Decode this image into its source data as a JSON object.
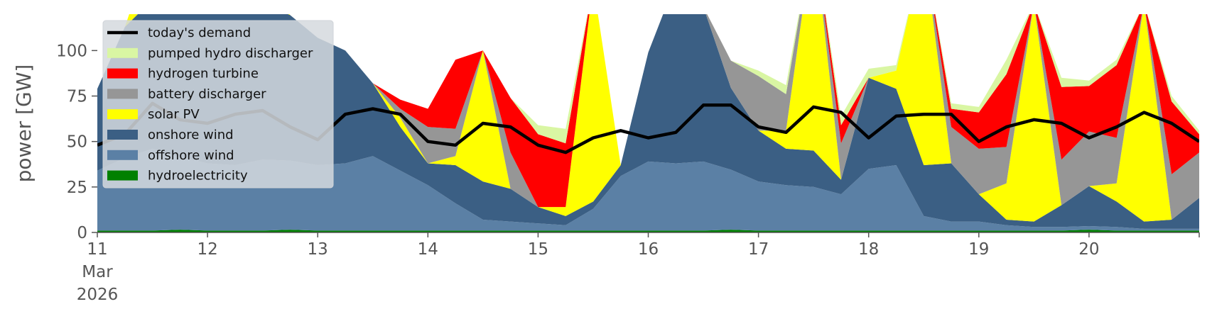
{
  "chart_data": {
    "type": "area",
    "ylabel": "power [GW]",
    "ylim": [
      0,
      120
    ],
    "yticks": [
      0,
      25,
      50,
      75,
      100
    ],
    "xlim_days": [
      11,
      21
    ],
    "xtick_labels": [
      {
        "day": 11,
        "lines": [
          "11",
          "Mar",
          "2026"
        ]
      },
      {
        "day": 12,
        "lines": [
          "12"
        ]
      },
      {
        "day": 13,
        "lines": [
          "13"
        ]
      },
      {
        "day": 14,
        "lines": [
          "14"
        ]
      },
      {
        "day": 15,
        "lines": [
          "15"
        ]
      },
      {
        "day": 16,
        "lines": [
          "16"
        ]
      },
      {
        "day": 17,
        "lines": [
          "17"
        ]
      },
      {
        "day": 18,
        "lines": [
          "18"
        ]
      },
      {
        "day": 19,
        "lines": [
          "19"
        ]
      },
      {
        "day": 20,
        "lines": [
          "20"
        ]
      }
    ],
    "legend_position": "top-left",
    "x": [
      11.0,
      11.25,
      11.5,
      11.75,
      12.0,
      12.25,
      12.5,
      12.75,
      13.0,
      13.25,
      13.5,
      13.75,
      14.0,
      14.25,
      14.5,
      14.75,
      15.0,
      15.25,
      15.5,
      15.75,
      16.0,
      16.25,
      16.5,
      16.75,
      17.0,
      17.25,
      17.5,
      17.75,
      18.0,
      18.25,
      18.5,
      18.75,
      19.0,
      19.25,
      19.5,
      19.75,
      20.0,
      20.25,
      20.5,
      20.75,
      21.0
    ],
    "series": [
      {
        "name": "hydroelectricity",
        "color": "#008000",
        "values": [
          1,
          1,
          1,
          1.5,
          1,
          1,
          1,
          1.5,
          1,
          1,
          1,
          1,
          1,
          1,
          1,
          1,
          1,
          1,
          1,
          1,
          1,
          1,
          1,
          1.5,
          1,
          1,
          1,
          1,
          1,
          1,
          1,
          1,
          1,
          1,
          1,
          1,
          1.5,
          1,
          1,
          1,
          1
        ]
      },
      {
        "name": "offshore wind",
        "color": "#5b80a5",
        "values": [
          33,
          40,
          45,
          40,
          37,
          36,
          39,
          38,
          36,
          37,
          41,
          33,
          25,
          15,
          6,
          5,
          4,
          3,
          12,
          30,
          38,
          37,
          38,
          33,
          27,
          25,
          24,
          20,
          34,
          36,
          8,
          5,
          5,
          3,
          2,
          2,
          2,
          2,
          1,
          1,
          1
        ]
      },
      {
        "name": "onshore wind",
        "color": "#3b5f84",
        "values": [
          45,
          72,
          82,
          88,
          90,
          86,
          86,
          80,
          70,
          62,
          40,
          24,
          12,
          21,
          21,
          18,
          9,
          5,
          4,
          6,
          60,
          100,
          85,
          45,
          28,
          20,
          20,
          8,
          50,
          42,
          28,
          32,
          15,
          3,
          3,
          12,
          22,
          14,
          4,
          5,
          17
        ]
      },
      {
        "name": "solar PV",
        "color": "#ffff00",
        "values": [
          0,
          0,
          30,
          0,
          0,
          0,
          20,
          0,
          0,
          0,
          0,
          5,
          0,
          5,
          72,
          0,
          0,
          5,
          120,
          0,
          0,
          0,
          0,
          0,
          0,
          10,
          120,
          0,
          0,
          10,
          120,
          0,
          0,
          20,
          120,
          0,
          0,
          10,
          120,
          0,
          0
        ]
      },
      {
        "name": "battery discharger",
        "color": "#969696",
        "values": [
          0,
          0,
          0,
          0,
          0,
          0,
          0,
          0,
          0,
          0,
          0,
          5,
          20,
          15,
          0,
          20,
          0,
          0,
          0,
          0,
          0,
          0,
          0,
          15,
          30,
          20,
          0,
          20,
          0,
          0,
          0,
          20,
          25,
          20,
          0,
          25,
          30,
          25,
          0,
          25,
          25
        ]
      },
      {
        "name": "hydrogen turbine",
        "color": "#ff0000",
        "values": [
          0,
          0,
          0,
          0,
          0,
          0,
          0,
          0,
          0,
          0,
          0,
          5,
          10,
          38,
          0,
          30,
          40,
          35,
          0,
          0,
          0,
          0,
          0,
          0,
          0,
          0,
          0,
          10,
          0,
          0,
          0,
          10,
          20,
          40,
          0,
          40,
          25,
          40,
          0,
          40,
          10
        ]
      },
      {
        "name": "pumped hydro discharger",
        "color": "#d9f6a3",
        "values": [
          0,
          0,
          0,
          0,
          0,
          0,
          0,
          0,
          0,
          0,
          0,
          0,
          0,
          0,
          0,
          0,
          5,
          8,
          0,
          0,
          0,
          0,
          0,
          0,
          3,
          5,
          0,
          5,
          5,
          3,
          0,
          3,
          3,
          8,
          0,
          5,
          3,
          3,
          0,
          3,
          2
        ]
      }
    ],
    "demand": {
      "name": "today's demand",
      "color": "#000000",
      "values": [
        48,
        54,
        71,
        62,
        60,
        65,
        67,
        58,
        51,
        65,
        68,
        65,
        50,
        48,
        60,
        58,
        48,
        44,
        52,
        56,
        52,
        55,
        70,
        70,
        58,
        55,
        69,
        66,
        52,
        64,
        65,
        65,
        50,
        58,
        62,
        60,
        52,
        58,
        66,
        60,
        50
      ]
    },
    "legend_order": [
      "today's demand",
      "pumped hydro discharger",
      "hydrogen turbine",
      "battery discharger",
      "solar PV",
      "onshore wind",
      "offshore wind",
      "hydroelectricity"
    ]
  }
}
